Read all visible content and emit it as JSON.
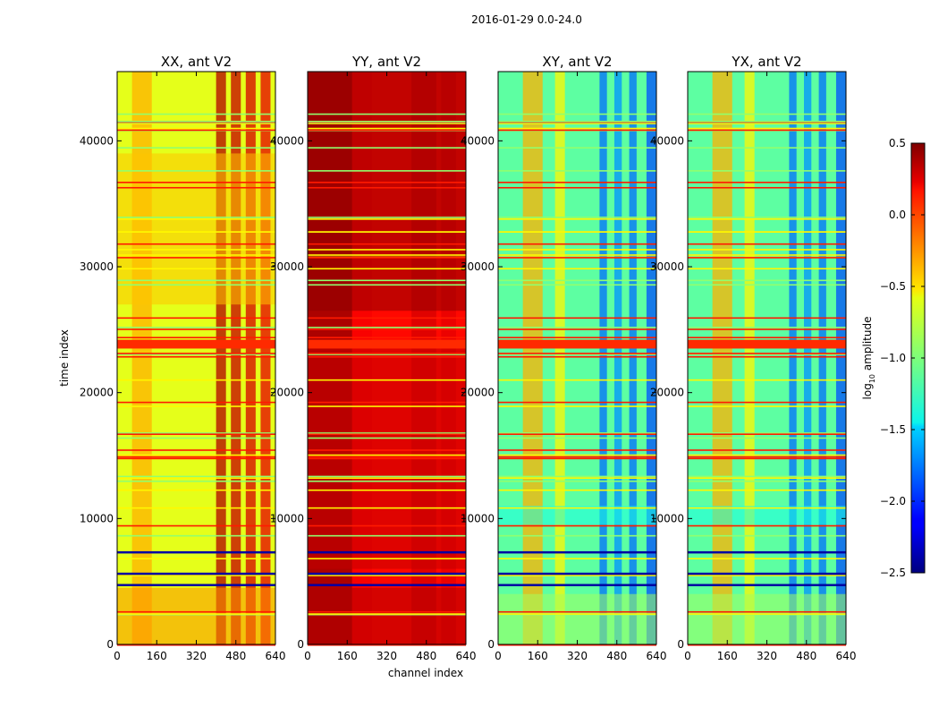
{
  "chart_data": {
    "type": "heatmap",
    "suptitle": "2016-01-29 0.0-24.0",
    "xlabel": "channel index",
    "ylabel": "time index",
    "xlim": [
      0,
      640
    ],
    "ylim": [
      0,
      45500
    ],
    "x_ticks": [
      0,
      160,
      320,
      480,
      640
    ],
    "y_ticks": [
      0,
      10000,
      20000,
      30000,
      40000
    ],
    "panels": [
      {
        "name": "xx",
        "title": "XX, ant V2",
        "base_level": -0.7
      },
      {
        "name": "yy",
        "title": "YY, ant V2",
        "base_level": 0.1
      },
      {
        "name": "xy",
        "title": "XY, ant V2",
        "base_level": -1.1
      },
      {
        "name": "yx",
        "title": "YX, ant V2",
        "base_level": -1.1
      }
    ],
    "colorbar": {
      "label": "log",
      "label_sub": "10",
      "label_rest": " amplitude",
      "min": -2.5,
      "max": 0.5,
      "ticks": [
        "0.5",
        "0.0",
        "−0.5",
        "−1.0",
        "−1.5",
        "−2.0",
        "−2.5"
      ],
      "tick_values": [
        0.5,
        0.0,
        -0.5,
        -1.0,
        -1.5,
        -2.0,
        -2.5
      ],
      "colormap": "jet"
    }
  }
}
